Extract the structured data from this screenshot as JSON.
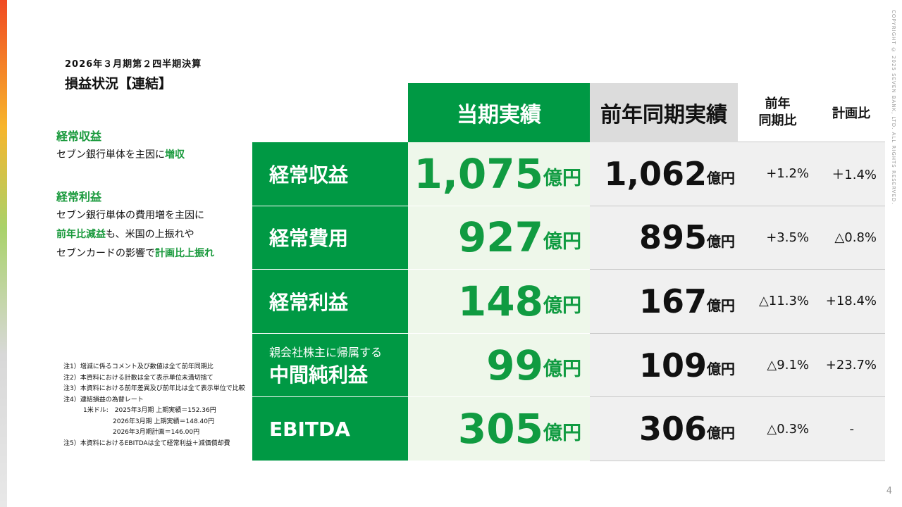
{
  "header": {
    "subtitle": "2026年３月期第２四半期決算",
    "title": "損益状況【連結】"
  },
  "side": [
    {
      "heading": "経常収益",
      "lines": [
        [
          {
            "text": "セブン銀行単体を主因に"
          },
          {
            "text": "増収",
            "green": true
          }
        ]
      ]
    },
    {
      "heading": "経常利益",
      "lines": [
        [
          {
            "text": "セブン銀行単体の費用増を主因に"
          }
        ],
        [
          {
            "text": "前年比減益",
            "green": true
          },
          {
            "text": "も、米国の上振れや"
          }
        ],
        [
          {
            "text": "セブンカードの影響で"
          },
          {
            "text": "計画比上振れ",
            "green": true
          }
        ]
      ]
    }
  ],
  "table": {
    "columns": [
      [
        "当期実績"
      ],
      [
        "前年同期実績"
      ],
      [
        "前年",
        "同期比"
      ],
      [
        "計画比"
      ]
    ],
    "rows": [
      {
        "label": "経常収益",
        "current": {
          "number": "1,075",
          "unit": "億円"
        },
        "prior": {
          "number": "1,062",
          "unit": "億円"
        },
        "yoy": "+1.2%",
        "plan": "＋1.4%"
      },
      {
        "label": "経常費用",
        "current": {
          "number": "927",
          "unit": "億円"
        },
        "prior": {
          "number": "895",
          "unit": "億円"
        },
        "yoy": "+3.5%",
        "plan": "△0.8%"
      },
      {
        "label": "経常利益",
        "current": {
          "number": "148",
          "unit": "億円"
        },
        "prior": {
          "number": "167",
          "unit": "億円"
        },
        "yoy": "△11.3%",
        "plan": "+18.4%"
      },
      {
        "sublabel": "親会社株主に帰属する",
        "label": "中間純利益",
        "current": {
          "number": "99",
          "unit": "億円"
        },
        "prior": {
          "number": "109",
          "unit": "億円"
        },
        "yoy": "△9.1%",
        "plan": "+23.7%"
      },
      {
        "label": "EBITDA",
        "current": {
          "number": "305",
          "unit": "億円"
        },
        "prior": {
          "number": "306",
          "unit": "億円"
        },
        "yoy": "△0.3%",
        "plan": "-"
      }
    ]
  },
  "notes": [
    {
      "text": "注1）増減に係るコメント及び数値は全て前年同期比"
    },
    {
      "text": "注2）本資料における計数は全て表示単位未満切捨て"
    },
    {
      "text": "注3）本資料における前年差異及び前年比は全て表示単位で比較"
    },
    {
      "text": "注4）連結損益の為替レート",
      "sub": [
        "1米ドル:　2025年3月期 上期実績＝152.36円",
        "2026年3月期 上期実績＝148.40円",
        "2026年3月期計画＝146.00円"
      ]
    },
    {
      "text": "注5）本資料におけるEBITDAは全て経常利益＋減価償却費"
    }
  ],
  "copyright": "COPYRIGHT © 2025 SEVEN BANK, LTD. ALL RIGHTS RESERVED.",
  "page": "4"
}
